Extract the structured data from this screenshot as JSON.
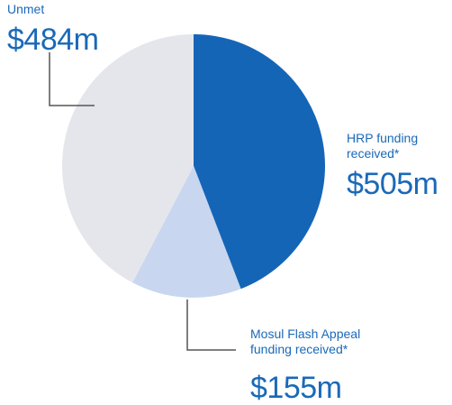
{
  "chart_data": {
    "type": "pie",
    "categories": [
      "HRP funding received*",
      "Mosul Flash Appeal funding received*",
      "Unmet"
    ],
    "values": [
      505,
      155,
      484
    ],
    "value_labels": [
      "$505m",
      "$155m",
      "$484m"
    ],
    "colors": [
      "#1565b7",
      "#c8d6ef",
      "#e5e6eb"
    ]
  }
}
